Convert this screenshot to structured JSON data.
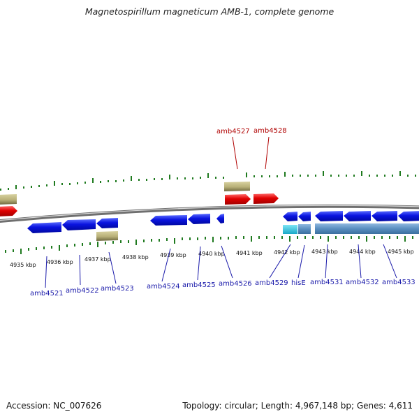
{
  "title": "Magnetospirillum magneticum AMB-1, complete genome",
  "footer": {
    "accession_label": "Accession:",
    "accession_value": "NC_007626",
    "summary": "Topology: circular; Length: 4,967,148 bp; Genes: 4,611"
  },
  "colors": {
    "forward_gene": "#e00000",
    "reverse_gene": "#0a14e0",
    "olive_feature": "#b8b078",
    "hist_feature": "#5a8fc0",
    "teal_feature": "#20c0d8",
    "tick": "#1f7a1f",
    "backbone": "#8a8a8a"
  },
  "kbp_ticks": [
    "4935 kbp",
    "4936 kbp",
    "4937 kbp",
    "4938 kbp",
    "4939 kbp",
    "4940 kbp",
    "4941 kbp",
    "4942 kbp",
    "4943 kbp",
    "4944 kbp",
    "4945 kbp"
  ],
  "forward_genes": [
    "amb4527",
    "amb4528"
  ],
  "reverse_genes": [
    "amb4521",
    "amb4522",
    "amb4523",
    "amb4524",
    "amb4525",
    "amb4526",
    "amb4529",
    "hisE",
    "amb4531",
    "amb4532",
    "amb4533"
  ]
}
